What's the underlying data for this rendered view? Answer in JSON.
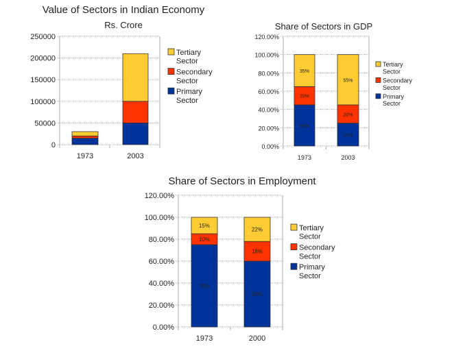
{
  "colors": {
    "Primary Sector": "#003399",
    "Secondary Sector": "#ff3300",
    "Tertiary Sector": "#ffcc33"
  },
  "chart_data": [
    {
      "type": "bar",
      "stacked": true,
      "title": "Value of Sectors in Indian Economy",
      "subtitle": "Rs. Crore",
      "categories": [
        "1973",
        "2003"
      ],
      "series": [
        {
          "name": "Primary Sector",
          "values": [
            15000,
            50000
          ]
        },
        {
          "name": "Secondary Sector",
          "values": [
            5000,
            50000
          ]
        },
        {
          "name": "Tertiary Sector",
          "values": [
            10000,
            110000
          ]
        }
      ],
      "ylim": [
        0,
        250000
      ],
      "yticks": [
        "0",
        "50000",
        "100000",
        "150000",
        "200000",
        "250000"
      ],
      "grid": true,
      "legend": "right"
    },
    {
      "type": "bar",
      "stacked": true,
      "title": "Share of Sectors in GDP",
      "categories": [
        "1973",
        "2003"
      ],
      "series": [
        {
          "name": "Primary Sector",
          "values": [
            45,
            25
          ],
          "labels": [
            "45%",
            "25%"
          ]
        },
        {
          "name": "Secondary Sector",
          "values": [
            20,
            20
          ],
          "labels": [
            "20%",
            "20%"
          ]
        },
        {
          "name": "Tertiary Sector",
          "values": [
            35,
            55
          ],
          "labels": [
            "35%",
            "55%"
          ]
        }
      ],
      "ylim": [
        0,
        120
      ],
      "yticks": [
        "0.00%",
        "20.00%",
        "40.00%",
        "60.00%",
        "80.00%",
        "100.00%",
        "120.00%"
      ],
      "grid": true,
      "legend": "right"
    },
    {
      "type": "bar",
      "stacked": true,
      "title": "Share of Sectors in Employment",
      "categories": [
        "1973",
        "2000"
      ],
      "series": [
        {
          "name": "Primary Sector",
          "values": [
            75,
            60
          ],
          "labels": [
            "75%",
            "60%"
          ]
        },
        {
          "name": "Secondary Sector",
          "values": [
            10,
            18
          ],
          "labels": [
            "10%",
            "18%"
          ]
        },
        {
          "name": "Tertiary Sector",
          "values": [
            15,
            22
          ],
          "labels": [
            "15%",
            "22%"
          ]
        }
      ],
      "ylim": [
        0,
        120
      ],
      "yticks": [
        "0.00%",
        "20.00%",
        "40.00%",
        "60.00%",
        "80.00%",
        "100.00%",
        "120.00%"
      ],
      "grid": true,
      "legend": "right"
    }
  ]
}
